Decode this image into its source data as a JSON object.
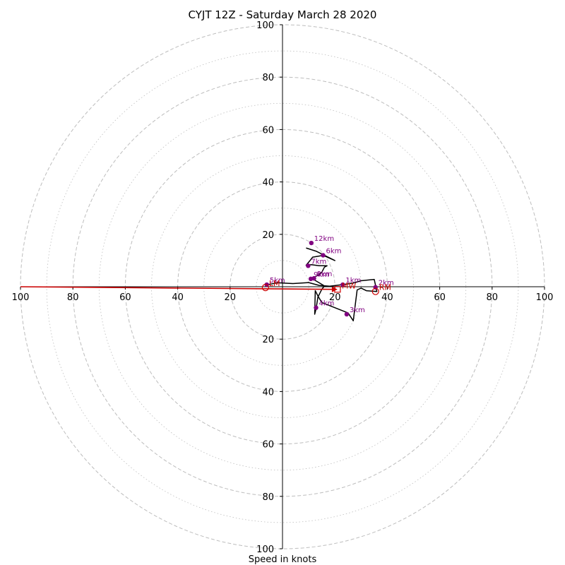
{
  "chart_data": {
    "type": "hodograph",
    "title": "CYJT 12Z - Saturday March 28 2020",
    "xlabel": "Speed in knots",
    "units": "knots",
    "max_speed": 100,
    "rings_major": [
      20,
      40,
      60,
      80,
      100
    ],
    "rings_minor": [
      10,
      30,
      50,
      70,
      90
    ],
    "axis_ticks": {
      "left": [
        "100",
        "80",
        "60",
        "40",
        "20"
      ],
      "right": [
        "20",
        "40",
        "60",
        "80",
        "100"
      ],
      "top": [
        "100",
        "80",
        "60",
        "40",
        "20"
      ],
      "bottom": [
        "20",
        "40",
        "60",
        "80",
        "100"
      ]
    },
    "colors": {
      "grid": "#bdbdbd",
      "trace": "#000000",
      "height_marker": "#800080",
      "storm_motion": "#cc0000"
    },
    "trace": [
      [
        -5.5,
        0.8
      ],
      [
        -2,
        1.5
      ],
      [
        4,
        1.2
      ],
      [
        10,
        1.6
      ],
      [
        14,
        0.5
      ],
      [
        18,
        0.2
      ],
      [
        23,
        0.8
      ],
      [
        27,
        1.4
      ],
      [
        30,
        2.3
      ],
      [
        35,
        2.8
      ],
      [
        36,
        -1.8
      ],
      [
        32,
        -1.5
      ],
      [
        30,
        -0.5
      ],
      [
        28.5,
        -1.2
      ],
      [
        28,
        -5
      ],
      [
        27,
        -13
      ],
      [
        25,
        -10
      ],
      [
        20,
        -8
      ],
      [
        15,
        -6
      ],
      [
        13.5,
        -3.5
      ],
      [
        12.5,
        -1.5
      ],
      [
        12.3,
        -10.5
      ],
      [
        12.8,
        -8.5
      ],
      [
        13.5,
        -4
      ],
      [
        15,
        -1
      ],
      [
        16,
        0.3
      ],
      [
        14,
        1.5
      ],
      [
        12,
        2.7
      ],
      [
        11,
        3.1
      ],
      [
        12,
        3.6
      ],
      [
        13.5,
        4.3
      ],
      [
        15,
        5.5
      ],
      [
        16,
        7.5
      ],
      [
        17,
        8.0
      ],
      [
        14,
        8.0
      ],
      [
        11,
        8.4
      ],
      [
        9,
        8.2
      ],
      [
        10.5,
        10.0
      ],
      [
        11.5,
        11.3
      ],
      [
        14.5,
        11.8
      ],
      [
        15.5,
        12.0
      ],
      [
        20,
        10.0
      ],
      [
        13,
        13.5
      ],
      [
        9,
        14.8
      ]
    ],
    "height_markers": [
      {
        "label": "1km",
        "x": 23,
        "y": 0.8
      },
      {
        "label": "2km",
        "x": 35.5,
        "y": -0.2
      },
      {
        "label": "3km",
        "x": 24.5,
        "y": -10.5
      },
      {
        "label": "4km",
        "x": 12.8,
        "y": -8.0
      },
      {
        "label": "5km",
        "x": -6.0,
        "y": 0.8
      },
      {
        "label": "6km",
        "x": 15.5,
        "y": 12.0
      },
      {
        "label": "7km",
        "x": 9.8,
        "y": 8.0
      },
      {
        "label": "8km",
        "x": 12.0,
        "y": 3.2
      },
      {
        "label": "9km",
        "x": 10.8,
        "y": 3.0
      },
      {
        "label": "12km",
        "x": 11.0,
        "y": 16.7
      }
    ],
    "storm_motion": {
      "bunkers_right": {
        "label": "RM",
        "x": 35.5,
        "y": -1.8
      },
      "bunkers_left": {
        "label": "LM",
        "x": -6.5,
        "y": -0.3
      },
      "mean_wind": {
        "label": "MW",
        "x": 21,
        "y": -1.0
      }
    }
  }
}
